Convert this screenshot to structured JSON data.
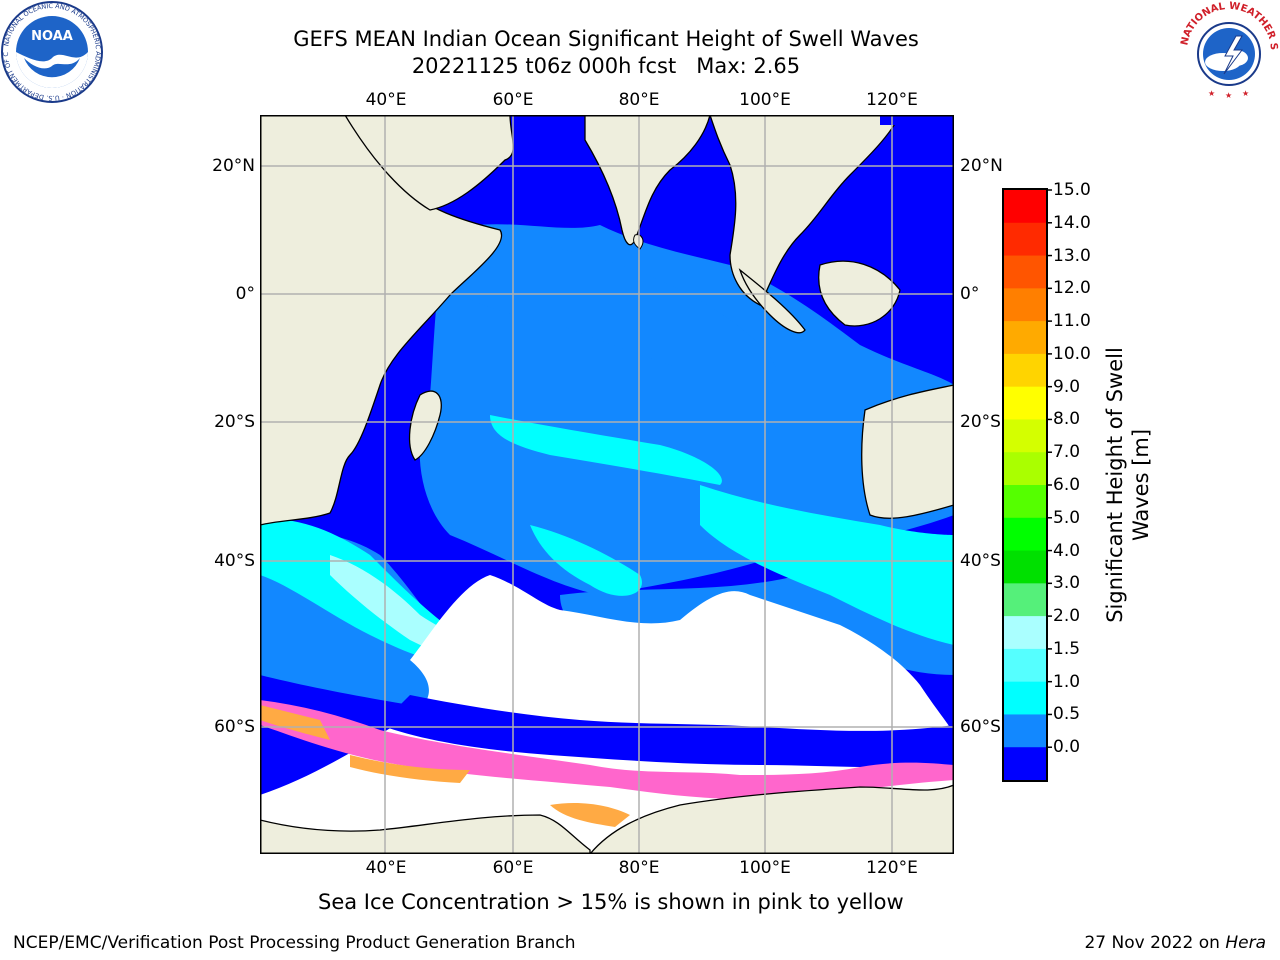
{
  "title": {
    "line1": "GEFS MEAN Indian Ocean Significant Height of Swell Waves",
    "line2": "20221125 t06z 000h fcst   Max: 2.65"
  },
  "axes": {
    "lon_labels": [
      "40°E",
      "60°E",
      "80°E",
      "100°E",
      "120°E"
    ],
    "lat_labels": [
      "20°N",
      "0°",
      "20°S",
      "40°S",
      "60°S"
    ]
  },
  "colorbar": {
    "title_line1": "Significant Height of Swell",
    "title_line2": "Waves [m]",
    "labels": [
      "15.0",
      "14.0",
      "13.0",
      "12.0",
      "11.0",
      "10.0",
      "9.0",
      "8.0",
      "7.0",
      "6.0",
      "5.0",
      "4.0",
      "3.0",
      "2.0",
      "1.5",
      "1.0",
      "0.5",
      "0.0"
    ],
    "colors": [
      "#ff0000",
      "#ff2a00",
      "#ff5500",
      "#ff7f00",
      "#ffaa00",
      "#ffd400",
      "#ffff00",
      "#d4ff00",
      "#aaff00",
      "#55ff00",
      "#00ff00",
      "#00e000",
      "#55f07a",
      "#aaffff",
      "#55ffff",
      "#00ffff",
      "#1288ff",
      "#0000ff"
    ]
  },
  "caption": "Sea Ice Concentration > 15% is shown in pink to yellow",
  "footer": {
    "left": "NCEP/EMC/Verification Post Processing Product Generation Branch",
    "right_prefix": "27 Nov 2022 on ",
    "right_machine": "Hera"
  },
  "logos": {
    "left": "NOAA",
    "left_ring": "NATIONAL OCEANIC AND ATMOSPHERIC ADMINISTRATION · U.S. DEPARTMENT OF COMMERCE",
    "right_ring": "NATIONAL WEATHER SERVICE"
  },
  "map_colors": {
    "ocean_low": "#0000ff",
    "ocean_mid": "#1288ff",
    "swell_cyan": "#00ffff",
    "swell_light": "#aaffff",
    "land": "#eeeedd",
    "ice_white": "#ffffff",
    "ice_pink": "#ff66cc",
    "ice_orange": "#ffaa44",
    "grid": "#b0b0b0"
  }
}
